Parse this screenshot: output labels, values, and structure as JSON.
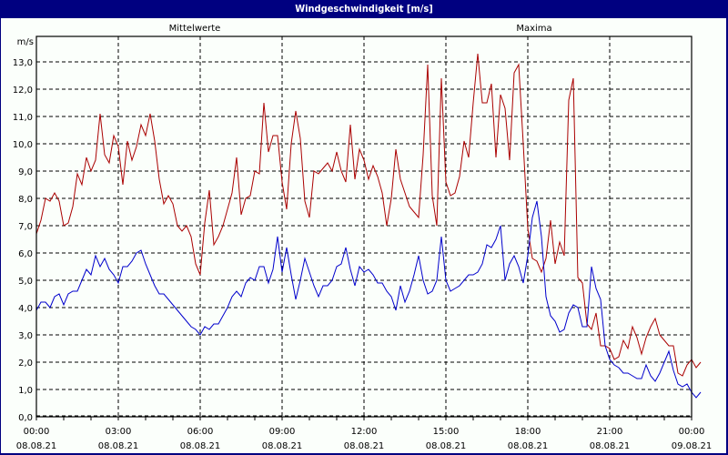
{
  "window": {
    "title": "Windgeschwindigkeit [m/s]"
  },
  "legend": {
    "mean_label": "Mittelwerte",
    "max_label": "Maxima",
    "mean_color": "#0000cc",
    "max_color": "#aa0000"
  },
  "axis": {
    "y_unit": "m/s",
    "y_ticks": [
      "0,0",
      "1,0",
      "2,0",
      "3,0",
      "4,0",
      "5,0",
      "6,0",
      "7,0",
      "8,0",
      "9,0",
      "10,0",
      "11,0",
      "12,0",
      "13,0"
    ],
    "x_ticks": [
      {
        "time": "00:00",
        "date": "08.08.21"
      },
      {
        "time": "03:00",
        "date": "08.08.21"
      },
      {
        "time": "06:00",
        "date": "08.08.21"
      },
      {
        "time": "09:00",
        "date": "08.08.21"
      },
      {
        "time": "12:00",
        "date": "08.08.21"
      },
      {
        "time": "15:00",
        "date": "08.08.21"
      },
      {
        "time": "18:00",
        "date": "08.08.21"
      },
      {
        "time": "21:00",
        "date": "08.08.21"
      },
      {
        "time": "00:00",
        "date": "09.08.21"
      }
    ]
  },
  "chart_data": {
    "type": "line",
    "title": "Windgeschwindigkeit [m/s]",
    "xlabel": "",
    "ylabel": "m/s",
    "ylim": [
      0,
      14
    ],
    "xlim_hours": [
      0,
      24
    ],
    "grid": true,
    "legend_position": "top",
    "x_interval_minutes": 10,
    "series": [
      {
        "name": "Mittelwerte",
        "color": "#0000cc",
        "values": [
          3.9,
          4.2,
          4.2,
          4.0,
          4.4,
          4.5,
          4.1,
          4.5,
          4.6,
          4.6,
          5.0,
          5.4,
          5.2,
          5.9,
          5.5,
          5.8,
          5.4,
          5.2,
          4.9,
          5.5,
          5.5,
          5.7,
          6.0,
          6.1,
          5.6,
          5.2,
          4.8,
          4.5,
          4.5,
          4.3,
          4.1,
          3.9,
          3.7,
          3.5,
          3.3,
          3.2,
          3.0,
          3.3,
          3.2,
          3.4,
          3.4,
          3.7,
          4.0,
          4.4,
          4.6,
          4.4,
          4.9,
          5.1,
          5.0,
          5.5,
          5.5,
          4.9,
          5.4,
          6.6,
          5.3,
          6.2,
          5.2,
          4.3,
          5.0,
          5.8,
          5.3,
          4.8,
          4.4,
          4.8,
          4.8,
          5.0,
          5.5,
          5.6,
          6.2,
          5.4,
          4.8,
          5.5,
          5.3,
          5.4,
          5.2,
          4.9,
          4.9,
          4.6,
          4.4,
          3.9,
          4.8,
          4.2,
          4.6,
          5.2,
          5.9,
          5.0,
          4.5,
          4.6,
          5.0,
          6.6,
          5.0,
          4.6,
          4.7,
          4.8,
          5.0,
          5.2,
          5.2,
          5.3,
          5.6,
          6.3,
          6.2,
          6.5,
          7.0,
          5.0,
          5.6,
          5.9,
          5.5,
          4.9,
          5.9,
          7.3,
          7.9,
          6.6,
          4.4,
          3.7,
          3.5,
          3.1,
          3.2,
          3.8,
          4.1,
          4.0,
          3.3,
          3.3,
          5.5,
          4.7,
          4.3,
          2.6,
          2.1,
          1.9,
          1.8,
          1.6,
          1.6,
          1.5,
          1.4,
          1.4,
          1.9,
          1.5,
          1.3,
          1.6,
          2.0,
          2.4,
          1.7,
          1.2,
          1.1,
          1.2,
          0.9,
          0.7,
          0.9
        ]
      },
      {
        "name": "Maxima",
        "color": "#aa0000",
        "values": [
          6.7,
          7.2,
          8.0,
          7.9,
          8.2,
          7.9,
          7.0,
          7.1,
          7.7,
          8.9,
          8.5,
          9.5,
          9.0,
          9.4,
          11.1,
          9.6,
          9.3,
          10.3,
          9.9,
          8.5,
          10.1,
          9.4,
          9.9,
          10.7,
          10.3,
          11.1,
          10.1,
          8.7,
          7.8,
          8.1,
          7.8,
          7.0,
          6.8,
          7.0,
          6.6,
          5.6,
          5.2,
          7.1,
          8.3,
          6.3,
          6.6,
          7.0,
          7.6,
          8.2,
          9.5,
          7.4,
          8.0,
          8.1,
          9.0,
          8.9,
          11.5,
          9.7,
          10.3,
          10.3,
          8.6,
          7.6,
          10.0,
          11.2,
          10.2,
          7.9,
          7.3,
          9.0,
          8.9,
          9.1,
          9.3,
          9.0,
          9.7,
          9.0,
          8.6,
          10.7,
          8.7,
          9.8,
          9.4,
          8.7,
          9.2,
          8.8,
          8.2,
          7.0,
          8.0,
          9.8,
          8.7,
          8.2,
          7.7,
          7.5,
          7.3,
          9.6,
          12.9,
          8.1,
          7.0,
          12.4,
          8.6,
          8.1,
          8.2,
          8.8,
          10.1,
          9.5,
          11.5,
          13.3,
          11.5,
          11.5,
          12.2,
          9.5,
          11.8,
          11.3,
          9.4,
          12.6,
          12.9,
          10.0,
          6.9,
          5.8,
          5.7,
          5.3,
          5.8,
          7.2,
          5.6,
          6.4,
          5.9,
          11.6,
          12.4,
          5.1,
          4.9,
          3.4,
          3.2,
          3.8,
          2.6,
          2.6,
          2.5,
          2.1,
          2.2,
          2.8,
          2.5,
          3.3,
          2.9,
          2.3,
          2.9,
          3.3,
          3.6,
          3.0,
          2.8,
          2.6,
          2.6,
          1.6,
          1.5,
          1.9,
          2.1,
          1.8,
          2.0
        ]
      }
    ]
  }
}
